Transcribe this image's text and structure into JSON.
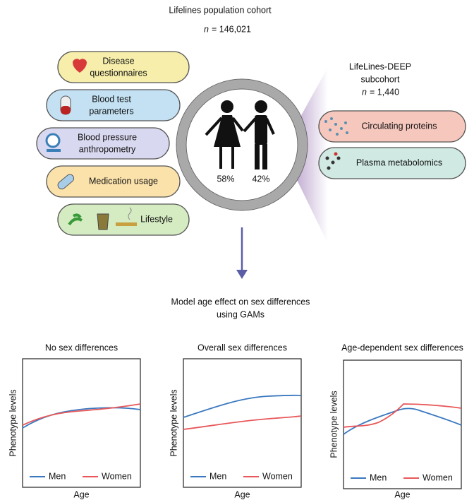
{
  "header": {
    "title": "Lifelines population cohort",
    "n": "n",
    "count": "= 146,021"
  },
  "data_types": [
    {
      "lines": [
        "Disease",
        "questionnaires"
      ]
    },
    {
      "lines": [
        "Blood test",
        "parameters"
      ]
    },
    {
      "lines": [
        "Blood pressure",
        "anthropometry"
      ]
    },
    {
      "lines": [
        "Medication usage"
      ]
    },
    {
      "lines": [
        "Lifestyle"
      ]
    }
  ],
  "sex_split": [
    "58%",
    "42%"
  ],
  "subcohort": {
    "lines": [
      "LifeLines-DEEP",
      "subcohort"
    ],
    "n": "n",
    "count": "= 1,440",
    "items": [
      "Circulating proteins",
      "Plasma metabolomics"
    ]
  },
  "model": [
    "Model age effect on sex differences",
    "using GAMs"
  ],
  "panels": [
    {
      "title": "No sex differences",
      "y_label": "Phenotype levels",
      "x_label": "Age",
      "legend": [
        "Men",
        "Women"
      ]
    },
    {
      "title": "Overall sex differences",
      "y_label": "Phenotype levels",
      "x_label": "Age",
      "legend": [
        "Men",
        "Women"
      ]
    },
    {
      "title": "Age-dependent sex differences",
      "y_label": "Phenotype levels",
      "x_label": "Age",
      "legend": [
        "Men",
        "Women"
      ]
    }
  ]
}
